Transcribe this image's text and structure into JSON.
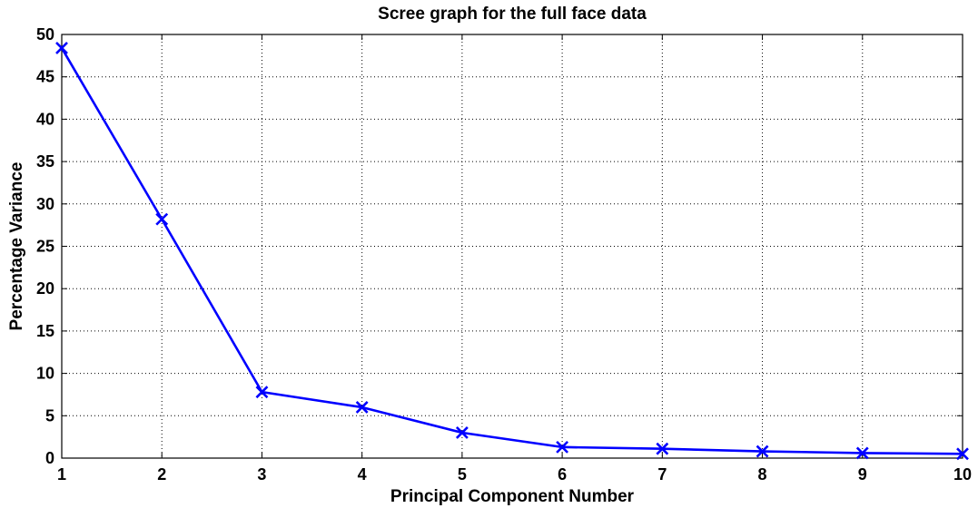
{
  "chart_data": {
    "type": "line",
    "title": "Scree graph for the full face data",
    "xlabel": "Principal Component Number",
    "ylabel": "Percentage Variance",
    "xlim": [
      1,
      10
    ],
    "ylim": [
      0,
      50
    ],
    "xticks": [
      1,
      2,
      3,
      4,
      5,
      6,
      7,
      8,
      9,
      10
    ],
    "yticks": [
      0,
      5,
      10,
      15,
      20,
      25,
      30,
      35,
      40,
      45,
      50
    ],
    "grid": true,
    "legend": "none",
    "series": [
      {
        "color": "#0000ff",
        "marker": "x",
        "x": [
          1,
          2,
          3,
          4,
          5,
          6,
          7,
          8,
          9,
          10
        ],
        "values": [
          48.4,
          28.2,
          7.8,
          6.0,
          3.0,
          1.3,
          1.1,
          0.8,
          0.6,
          0.5
        ]
      }
    ]
  }
}
